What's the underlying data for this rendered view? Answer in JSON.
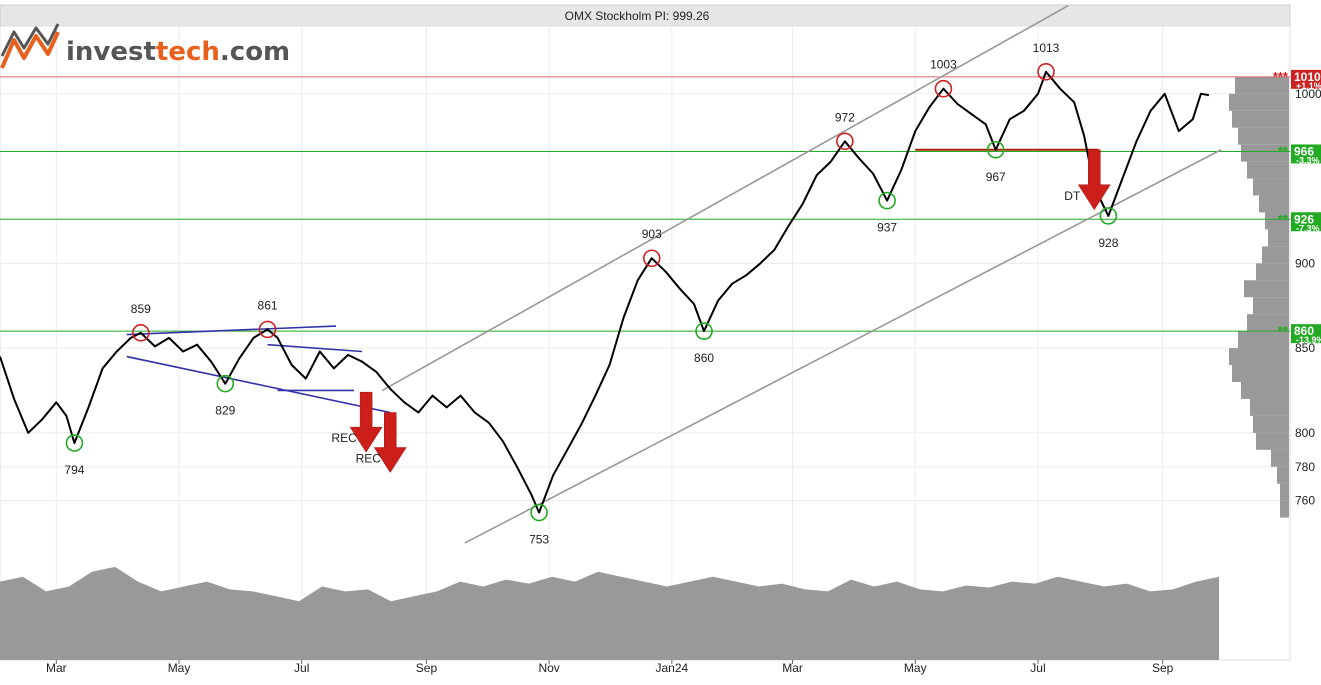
{
  "chart_data": {
    "type": "line",
    "title": "OMX Stockholm PI: 999.26",
    "logo": {
      "text_main": "invest",
      "text_accent": "tech",
      "text_suffix": ".com"
    },
    "x_tick_labels": [
      {
        "label": "Mar",
        "date": "2023-03-01"
      },
      {
        "label": "May",
        "date": "2023-05-01"
      },
      {
        "label": "Jul",
        "date": "2023-07-01"
      },
      {
        "label": "Sep",
        "date": "2023-09-01"
      },
      {
        "label": "Nov",
        "date": "2023-11-01"
      },
      {
        "label": "Jan24",
        "date": "2024-01-01"
      },
      {
        "label": "Mar",
        "date": "2024-03-01"
      },
      {
        "label": "May",
        "date": "2024-05-01"
      },
      {
        "label": "Jul",
        "date": "2024-07-01"
      },
      {
        "label": "Sep",
        "date": "2024-09-01"
      }
    ],
    "y_tick_labels": [
      {
        "label": "760",
        "value": 760
      },
      {
        "label": "780",
        "value": 780
      },
      {
        "label": "800",
        "value": 800
      },
      {
        "label": "850",
        "value": 850
      },
      {
        "label": "900",
        "value": 900
      },
      {
        "label": "1000",
        "value": 1000
      }
    ],
    "ylim": [
      725,
      1040
    ],
    "grid": true,
    "series": [
      {
        "name": "",
        "color": "#000000",
        "points": [
          [
            "2023-02-01",
            845
          ],
          [
            "2023-02-08",
            820
          ],
          [
            "2023-02-15",
            800
          ],
          [
            "2023-02-22",
            808
          ],
          [
            "2023-03-01",
            818
          ],
          [
            "2023-03-06",
            810
          ],
          [
            "2023-03-10",
            794
          ],
          [
            "2023-03-17",
            815
          ],
          [
            "2023-03-24",
            838
          ],
          [
            "2023-03-31",
            848
          ],
          [
            "2023-04-07",
            856
          ],
          [
            "2023-04-12",
            859
          ],
          [
            "2023-04-19",
            851
          ],
          [
            "2023-04-26",
            856
          ],
          [
            "2023-05-03",
            848
          ],
          [
            "2023-05-10",
            852
          ],
          [
            "2023-05-17",
            842
          ],
          [
            "2023-05-24",
            829
          ],
          [
            "2023-05-31",
            844
          ],
          [
            "2023-06-07",
            856
          ],
          [
            "2023-06-14",
            861
          ],
          [
            "2023-06-19",
            856
          ],
          [
            "2023-06-26",
            840
          ],
          [
            "2023-07-03",
            832
          ],
          [
            "2023-07-10",
            848
          ],
          [
            "2023-07-17",
            838
          ],
          [
            "2023-07-24",
            846
          ],
          [
            "2023-07-31",
            842
          ],
          [
            "2023-08-07",
            836
          ],
          [
            "2023-08-14",
            826
          ],
          [
            "2023-08-21",
            818
          ],
          [
            "2023-08-28",
            812
          ],
          [
            "2023-09-04",
            822
          ],
          [
            "2023-09-11",
            815
          ],
          [
            "2023-09-18",
            822
          ],
          [
            "2023-09-25",
            812
          ],
          [
            "2023-10-02",
            806
          ],
          [
            "2023-10-09",
            795
          ],
          [
            "2023-10-16",
            780
          ],
          [
            "2023-10-23",
            764
          ],
          [
            "2023-10-27",
            753
          ],
          [
            "2023-11-03",
            775
          ],
          [
            "2023-11-10",
            790
          ],
          [
            "2023-11-17",
            805
          ],
          [
            "2023-11-24",
            822
          ],
          [
            "2023-12-01",
            840
          ],
          [
            "2023-12-08",
            868
          ],
          [
            "2023-12-15",
            890
          ],
          [
            "2023-12-22",
            903
          ],
          [
            "2023-12-29",
            895
          ],
          [
            "2024-01-05",
            885
          ],
          [
            "2024-01-12",
            876
          ],
          [
            "2024-01-17",
            860
          ],
          [
            "2024-01-24",
            878
          ],
          [
            "2024-01-31",
            888
          ],
          [
            "2024-02-07",
            893
          ],
          [
            "2024-02-14",
            900
          ],
          [
            "2024-02-21",
            908
          ],
          [
            "2024-02-28",
            922
          ],
          [
            "2024-03-06",
            935
          ],
          [
            "2024-03-13",
            952
          ],
          [
            "2024-03-20",
            960
          ],
          [
            "2024-03-27",
            972
          ],
          [
            "2024-04-03",
            962
          ],
          [
            "2024-04-10",
            953
          ],
          [
            "2024-04-17",
            937
          ],
          [
            "2024-04-24",
            955
          ],
          [
            "2024-05-01",
            978
          ],
          [
            "2024-05-08",
            992
          ],
          [
            "2024-05-15",
            1003
          ],
          [
            "2024-05-22",
            994
          ],
          [
            "2024-05-29",
            988
          ],
          [
            "2024-06-05",
            982
          ],
          [
            "2024-06-10",
            967
          ],
          [
            "2024-06-17",
            985
          ],
          [
            "2024-06-24",
            990
          ],
          [
            "2024-07-01",
            1000
          ],
          [
            "2024-07-05",
            1013
          ],
          [
            "2024-07-12",
            1003
          ],
          [
            "2024-07-19",
            995
          ],
          [
            "2024-07-24",
            975
          ],
          [
            "2024-07-29",
            945
          ],
          [
            "2024-08-05",
            928
          ],
          [
            "2024-08-12",
            950
          ],
          [
            "2024-08-19",
            972
          ],
          [
            "2024-08-26",
            990
          ],
          [
            "2024-09-02",
            1000
          ],
          [
            "2024-09-09",
            978
          ],
          [
            "2024-09-16",
            985
          ],
          [
            "2024-09-20",
            1000
          ],
          [
            "2024-09-24",
            999.26
          ]
        ]
      }
    ],
    "horizontal_levels": [
      {
        "value": 1010,
        "color": "#e06666",
        "stars": "***",
        "label": "1010",
        "pct": "+1.1%",
        "label_bg": "#cc2222"
      },
      {
        "value": 966,
        "color": "#22aa22",
        "stars": "**",
        "label": "966",
        "pct": "-3.3%",
        "label_bg": "#22aa22"
      },
      {
        "value": 926,
        "color": "#22aa22",
        "stars": "**",
        "label": "926",
        "pct": "-7.3%",
        "label_bg": "#22aa22"
      },
      {
        "value": 860,
        "color": "#22aa22",
        "stars": "**",
        "label": "860",
        "pct": "-13.9%",
        "label_bg": "#22aa22"
      }
    ],
    "pivot_labels": [
      {
        "text": "794",
        "date": "2023-03-10",
        "value": 794,
        "type": "low"
      },
      {
        "text": "859",
        "date": "2023-04-12",
        "value": 859,
        "type": "high"
      },
      {
        "text": "829",
        "date": "2023-05-24",
        "value": 829,
        "type": "low"
      },
      {
        "text": "861",
        "date": "2023-06-14",
        "value": 861,
        "type": "high"
      },
      {
        "text": "753",
        "date": "2023-10-27",
        "value": 753,
        "type": "low"
      },
      {
        "text": "903",
        "date": "2023-12-22",
        "value": 903,
        "type": "high"
      },
      {
        "text": "860",
        "date": "2024-01-17",
        "value": 860,
        "type": "low"
      },
      {
        "text": "972",
        "date": "2024-03-27",
        "value": 972,
        "type": "high"
      },
      {
        "text": "937",
        "date": "2024-04-17",
        "value": 937,
        "type": "low"
      },
      {
        "text": "1003",
        "date": "2024-05-15",
        "value": 1003,
        "type": "high"
      },
      {
        "text": "967",
        "date": "2024-06-10",
        "value": 967,
        "type": "low"
      },
      {
        "text": "1013",
        "date": "2024-07-05",
        "value": 1013,
        "type": "high"
      },
      {
        "text": "928",
        "date": "2024-08-05",
        "value": 928,
        "type": "low"
      }
    ],
    "trend_lines": [
      {
        "color": "#999999",
        "from": [
          "2023-08-10",
          825
        ],
        "to": [
          "2024-07-16",
          1052
        ]
      },
      {
        "color": "#999999",
        "from": [
          "2023-09-20",
          735
        ],
        "to": [
          "2024-09-30",
          967
        ]
      },
      {
        "color": "#3333aa",
        "from": [
          "2023-04-05",
          858
        ],
        "to": [
          "2023-07-18",
          863
        ]
      },
      {
        "color": "#3333aa",
        "from": [
          "2023-04-05",
          845
        ],
        "to": [
          "2023-08-14",
          812
        ]
      },
      {
        "color": "#3333aa",
        "from": [
          "2023-06-14",
          852
        ],
        "to": [
          "2023-07-31",
          848
        ]
      },
      {
        "color": "#3333aa",
        "from": [
          "2023-06-19",
          825
        ],
        "to": [
          "2023-07-27",
          825
        ]
      },
      {
        "color": "#aa2200",
        "from": [
          "2024-05-01",
          967
        ],
        "to": [
          "2024-07-31",
          967
        ]
      }
    ],
    "signal_labels": [
      {
        "text": "REC",
        "date": "2023-08-02",
        "value": 824
      },
      {
        "text": "REC",
        "date": "2023-08-14",
        "value": 812
      },
      {
        "text": "DT",
        "date": "2024-07-29",
        "value": 967
      }
    ],
    "volume_profile": [
      {
        "value": 1005,
        "weight": 0.9
      },
      {
        "value": 995,
        "weight": 1.0
      },
      {
        "value": 985,
        "weight": 0.95
      },
      {
        "value": 975,
        "weight": 0.85
      },
      {
        "value": 965,
        "weight": 0.8
      },
      {
        "value": 955,
        "weight": 0.7
      },
      {
        "value": 945,
        "weight": 0.6
      },
      {
        "value": 935,
        "weight": 0.5
      },
      {
        "value": 925,
        "weight": 0.4
      },
      {
        "value": 915,
        "weight": 0.35
      },
      {
        "value": 905,
        "weight": 0.45
      },
      {
        "value": 895,
        "weight": 0.55
      },
      {
        "value": 885,
        "weight": 0.75
      },
      {
        "value": 875,
        "weight": 0.6
      },
      {
        "value": 865,
        "weight": 0.7
      },
      {
        "value": 855,
        "weight": 0.85
      },
      {
        "value": 845,
        "weight": 1.0
      },
      {
        "value": 835,
        "weight": 0.95
      },
      {
        "value": 825,
        "weight": 0.8
      },
      {
        "value": 815,
        "weight": 0.65
      },
      {
        "value": 805,
        "weight": 0.6
      },
      {
        "value": 795,
        "weight": 0.55
      },
      {
        "value": 785,
        "weight": 0.3
      },
      {
        "value": 775,
        "weight": 0.2
      },
      {
        "value": 765,
        "weight": 0.15
      },
      {
        "value": 755,
        "weight": 0.15
      }
    ],
    "volume": [
      0.8,
      0.85,
      0.7,
      0.75,
      0.9,
      0.95,
      0.8,
      0.7,
      0.75,
      0.8,
      0.72,
      0.7,
      0.65,
      0.6,
      0.75,
      0.7,
      0.72,
      0.6,
      0.65,
      0.7,
      0.8,
      0.75,
      0.82,
      0.78,
      0.85,
      0.8,
      0.9,
      0.85,
      0.8,
      0.75,
      0.8,
      0.85,
      0.8,
      0.75,
      0.78,
      0.72,
      0.7,
      0.82,
      0.75,
      0.8,
      0.72,
      0.7,
      0.76,
      0.74,
      0.8,
      0.78,
      0.85,
      0.8,
      0.75,
      0.78,
      0.7,
      0.72,
      0.8,
      0.85
    ]
  }
}
